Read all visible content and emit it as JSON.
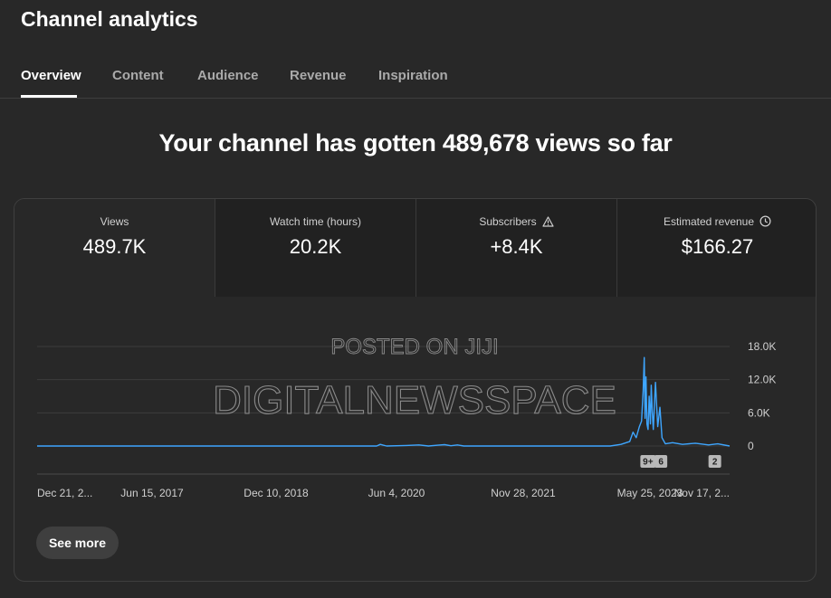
{
  "page": {
    "title": "Channel analytics"
  },
  "tabs": [
    {
      "label": "Overview",
      "active": true
    },
    {
      "label": "Content"
    },
    {
      "label": "Audience"
    },
    {
      "label": "Revenue"
    },
    {
      "label": "Inspiration"
    }
  ],
  "headline": "Your channel has gotten 489,678 views so far",
  "metrics": [
    {
      "label": "Views",
      "value": "489.7K"
    },
    {
      "label": "Watch time (hours)",
      "value": "20.2K"
    },
    {
      "label": "Subscribers",
      "value": "+8.4K",
      "icon": "warning-icon"
    },
    {
      "label": "Estimated revenue",
      "value": "$166.27",
      "icon": "clock-icon"
    }
  ],
  "watermark": {
    "line1": "POSTED ON JIJI",
    "line2": "DIGITALNEWSSPACE"
  },
  "chart_data": {
    "type": "line",
    "title": "",
    "xlabel": "",
    "ylabel": "",
    "y_ticks": [
      "18.0K",
      "12.0K",
      "6.0K",
      "0"
    ],
    "ylim": [
      0,
      18000
    ],
    "x_ticks": [
      "Dec 21, 2...",
      "Jun 15, 2017",
      "Dec 10, 2018",
      "Jun 4, 2020",
      "Nov 28, 2021",
      "May 25, 2023",
      "Nov 17, 2..."
    ],
    "color": "#3ea6ff",
    "series": [
      {
        "points": [
          [
            "2015-12-21",
            0
          ],
          [
            "2020-05-15",
            0
          ],
          [
            "2020-06-01",
            300
          ],
          [
            "2020-06-15",
            150
          ],
          [
            "2020-07-01",
            0
          ],
          [
            "2020-10-01",
            100
          ],
          [
            "2020-12-01",
            200
          ],
          [
            "2021-01-15",
            0
          ],
          [
            "2021-03-01",
            150
          ],
          [
            "2021-04-01",
            250
          ],
          [
            "2021-05-01",
            50
          ],
          [
            "2021-06-01",
            200
          ],
          [
            "2021-07-01",
            0
          ],
          [
            "2023-05-25",
            0
          ],
          [
            "2023-07-15",
            300
          ],
          [
            "2023-08-25",
            800
          ],
          [
            "2023-09-10",
            2500
          ],
          [
            "2023-09-25",
            1500
          ],
          [
            "2023-10-10",
            3500
          ],
          [
            "2023-10-20",
            4500
          ],
          [
            "2023-10-28",
            10000
          ],
          [
            "2023-11-02",
            16000
          ],
          [
            "2023-11-06",
            5000
          ],
          [
            "2023-11-10",
            12500
          ],
          [
            "2023-11-15",
            4000
          ],
          [
            "2023-11-20",
            3000
          ],
          [
            "2023-11-25",
            9000
          ],
          [
            "2023-12-01",
            4000
          ],
          [
            "2023-12-05",
            11000
          ],
          [
            "2023-12-10",
            6000
          ],
          [
            "2023-12-15",
            3000
          ],
          [
            "2023-12-25",
            11500
          ],
          [
            "2024-01-05",
            3500
          ],
          [
            "2024-01-15",
            7000
          ],
          [
            "2024-01-25",
            1500
          ],
          [
            "2024-02-10",
            400
          ],
          [
            "2024-03-15",
            600
          ],
          [
            "2024-05-01",
            300
          ],
          [
            "2024-07-01",
            500
          ],
          [
            "2024-09-01",
            200
          ],
          [
            "2024-10-15",
            400
          ],
          [
            "2024-12-10",
            0
          ]
        ]
      }
    ],
    "markers": [
      {
        "label": "9+",
        "date": "2023-11-20"
      },
      {
        "label": "6",
        "date": "2024-01-20"
      },
      {
        "label": "2",
        "date": "2024-10-01"
      }
    ]
  },
  "buttons": {
    "see_more": "See more"
  }
}
